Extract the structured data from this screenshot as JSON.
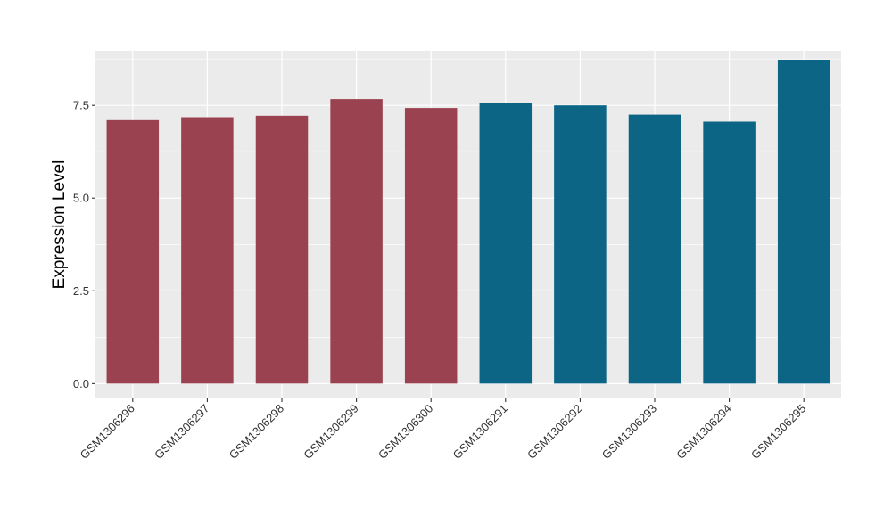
{
  "chart_data": {
    "type": "bar",
    "title": "",
    "xlabel": "",
    "ylabel": "Expression Level",
    "categories": [
      "GSM1306296",
      "GSM1306297",
      "GSM1306298",
      "GSM1306299",
      "GSM1306300",
      "GSM1306291",
      "GSM1306292",
      "GSM1306293",
      "GSM1306294",
      "GSM1306295"
    ],
    "values": [
      7.1,
      7.18,
      7.22,
      7.67,
      7.43,
      7.56,
      7.5,
      7.25,
      7.06,
      8.73
    ],
    "bar_colors": [
      "#9A4250",
      "#9A4250",
      "#9A4250",
      "#9A4250",
      "#9A4250",
      "#0C6585",
      "#0C6585",
      "#0C6585",
      "#0C6585",
      "#0C6585"
    ],
    "ylim": [
      -0.4,
      8.97
    ],
    "yticks": [
      0,
      2.5,
      5,
      7.5
    ],
    "ytick_labels": [
      "0.0",
      "2.5",
      "5.0",
      "7.5"
    ],
    "grid": true,
    "legend": "none",
    "colors": {
      "panel_background": "#EBEBEB",
      "grid_line": "#FFFFFF"
    }
  }
}
